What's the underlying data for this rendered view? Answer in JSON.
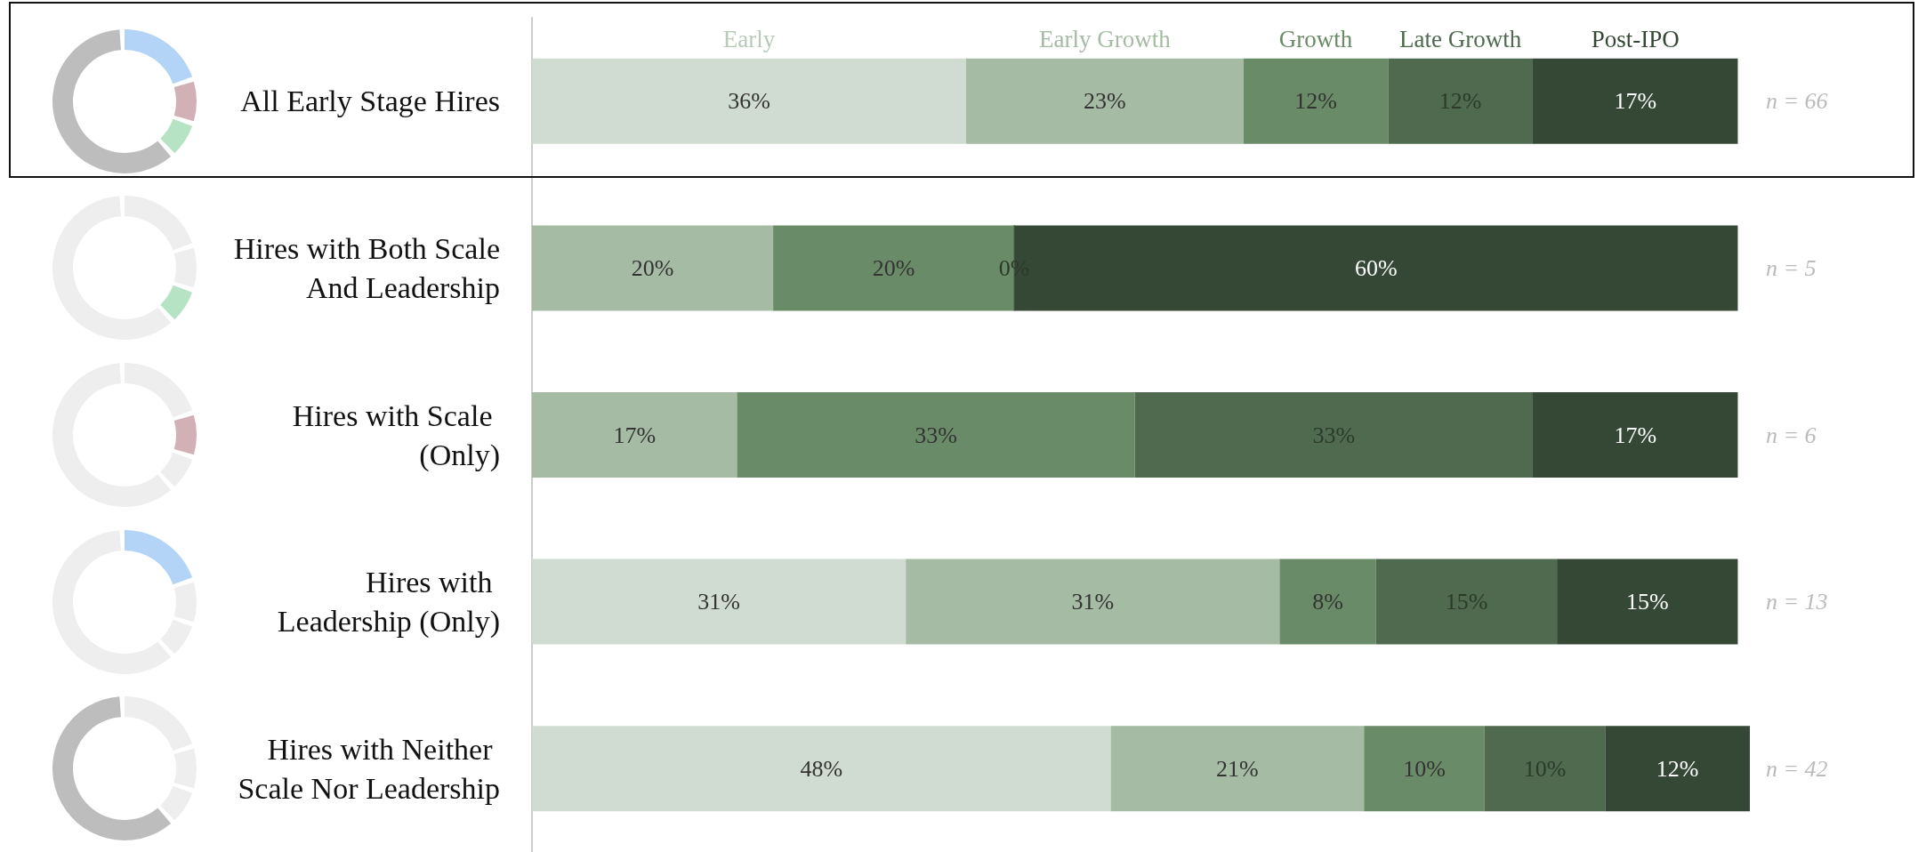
{
  "chart_data": {
    "type": "bar",
    "orientation": "horizontal",
    "stacked": true,
    "data_labels": true,
    "legend": "top",
    "categories": [
      "All Early Stage Hires",
      "Hires with Both Scale And Leadership",
      "Hires with Scale (Only)",
      "Hires with Leadership (Only)",
      "Hires with Neither Scale Nor Leadership"
    ],
    "series": [
      {
        "name": "Early",
        "color": "#d0dcd1",
        "values": [
          36,
          0,
          0,
          31,
          48
        ],
        "value_labels": [
          "36%",
          null,
          null,
          "31%",
          "48%"
        ]
      },
      {
        "name": "Early Growth",
        "color": "#a5bba3",
        "values": [
          23,
          20,
          17,
          31,
          21
        ],
        "value_labels": [
          "23%",
          "20%",
          "17%",
          "31%",
          "21%"
        ]
      },
      {
        "name": "Growth",
        "color": "#6a8b67",
        "values": [
          12,
          20,
          33,
          8,
          10
        ],
        "value_labels": [
          "12%",
          "20%",
          "33%",
          "8%",
          "10%"
        ]
      },
      {
        "name": "Late Growth",
        "color": "#4f6a4e",
        "values": [
          12,
          0,
          33,
          15,
          10
        ],
        "value_labels": [
          "12%",
          "0%",
          "33%",
          "15%",
          "10%"
        ]
      },
      {
        "name": "Post-IPO",
        "color": "#354835",
        "values": [
          17,
          60,
          17,
          15,
          12
        ],
        "value_labels": [
          "17%",
          "60%",
          "17%",
          "15%",
          "12%"
        ]
      }
    ],
    "annotations": [
      "n = 66",
      "n = 5",
      "n = 6",
      "n = 13",
      "n = 42"
    ]
  }
}
